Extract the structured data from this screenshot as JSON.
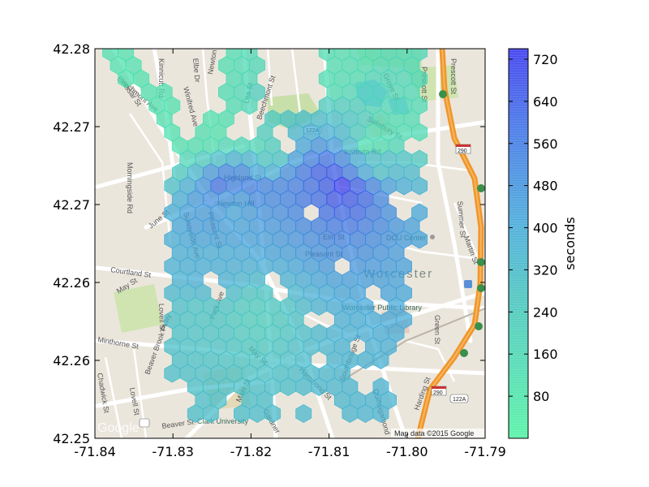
{
  "chart_data": {
    "type": "heatmap",
    "subtype": "hexbin-over-map",
    "x_ticks": [
      "-71.84",
      "-71.83",
      "-71.82",
      "-71.81",
      "-71.80",
      "-71.79"
    ],
    "x_tick_values": [
      -71.84,
      -71.83,
      -71.82,
      -71.81,
      -71.8,
      -71.79
    ],
    "y_ticks": [
      "42.28",
      "42.27",
      "42.27",
      "42.26",
      "42.26",
      "42.25"
    ],
    "y_tick_values": [
      42.28,
      42.275,
      42.27,
      42.265,
      42.26,
      42.255
    ],
    "xlim": [
      -71.84,
      -71.79
    ],
    "ylim": [
      42.255,
      42.28
    ],
    "colorbar": {
      "label": "seconds",
      "ticks": [
        "80",
        "160",
        "240",
        "320",
        "400",
        "480",
        "560",
        "640",
        "720"
      ],
      "tick_values": [
        80,
        160,
        240,
        320,
        400,
        480,
        560,
        640,
        720
      ],
      "range": [
        0,
        740
      ],
      "color_low": "#4cf2a0",
      "color_mid": "#40a8d8",
      "color_high": "#3333ee"
    },
    "hex_cells_seconds": {
      "-71.8375,42.27975": 110,
      "-71.8345,42.27925": 100,
      "-71.8355,42.27875": 110,
      "-71.8355,42.27775": 100,
      "-71.8365,42.27675": 90,
      "-71.837,42.27625": 110,
      "-71.8365,42.27525": 110,
      "-71.8345,42.27425": 100,
      "-71.8315,42.27375": 100,
      "-71.8275,42.27925": 110,
      "-71.8265,42.27975": 100,
      "-71.8275,42.27825": 120,
      "-71.8285,42.27725": 110,
      "-71.8295,42.27625": 100,
      "-71.8315,42.27525": 110,
      "-71.8285,42.27475": 100,
      "-71.8265,42.27525": 110,
      "-71.8245,42.27475": 100,
      "-71.8255,42.27425": 120,
      "-71.8225,42.27475": 130,
      "-71.8205,42.27425": 150,
      "-71.8185,42.27375": 170,
      "-71.8175,42.27275": 220,
      "-71.8195,42.27275": 320,
      "-71.8215,42.27175": 480,
      "-71.8235,42.27125": 560,
      "-71.8195,42.27125": 520,
      "-71.8175,42.27125": 500,
      "-71.8145,42.27125": 520,
      "-71.8125,42.27125": 560,
      "-71.8105,42.27175": 620,
      "-71.8085,42.27125": 720,
      "-71.8065,42.27075": 640,
      "-71.8045,42.27125": 500,
      "-71.8055,42.27225": 380,
      "-71.8035,42.27225": 260,
      "-71.8245,42.27025": 460,
      "-71.8225,42.26975": 380,
      "-71.8255,42.26925": 420,
      "-71.8105,42.27825": 130,
      "-71.8085,42.27925": 120,
      "-71.8065,42.27875": 140,
      "-71.8035,42.27775": 180,
      "-71.8015,42.27675": 160,
      "-71.7995,42.27575": 140,
      "-71.7975,42.27525": 150,
      "-71.8005,42.27475": 130,
      "-71.8045,42.27375": 120,
      "-71.8255,42.26575": 360,
      "-71.8255,42.26275": 240,
      "-71.8195,42.26275": 200
    }
  }
}
